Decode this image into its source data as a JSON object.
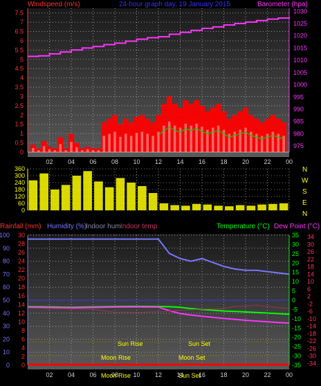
{
  "header": {
    "left_title": "Windspeed (m/s)",
    "center_title": "24-hour graph day, 19 January 2015",
    "right_title": "Barometer (hpa)"
  },
  "panel2": {
    "right_labels": [
      "N",
      "W",
      "S",
      "E",
      "N"
    ]
  },
  "panel3_header": {
    "rainfall": "Rainfall (mm)",
    "humidity": "Humidity (%)",
    "indoor_hum": "Indoor hum",
    "indoor_temp": "Indoor temp",
    "temperature": "Temperature (°C)",
    "dew_point": "Dew Point (°C)"
  },
  "astro": {
    "sun_rise": "Sun Rise",
    "sun_set": "Sun Set",
    "moon_rise": "Moon Rise",
    "moon_set": "Moon Set"
  },
  "colors": {
    "wind": "#ff0000",
    "gust_bg": "#ffffff",
    "wind_avg": "#00cc00",
    "barometer": "#ff33ff",
    "direction": "#ffff00",
    "humidity": "#7777ff",
    "temperature": "#00ff00",
    "dew_point": "#ff33ff",
    "indoor_temp": "#993355",
    "rain": "#ff0000",
    "axis_tick": "#ffff00",
    "title_center": "#3333ff"
  },
  "chart_data": [
    {
      "type": "bar",
      "title": "24-hour graph day, 19 January 2015",
      "xlabel": "",
      "ylabel": "Windspeed (m/s)",
      "y2label": "Barometer (hpa)",
      "x_ticks": [
        "02",
        "04",
        "06",
        "08",
        "10",
        "12",
        "14",
        "16",
        "18",
        "20",
        "22",
        "00"
      ],
      "y_ticks": [
        "0",
        "0.5",
        "1",
        "1.5",
        "2",
        "2.5",
        "3",
        "3.5",
        "4",
        "4.5",
        "5",
        "5.5",
        "6",
        "6.5",
        "7",
        "7.5"
      ],
      "y2_ticks": [
        "975",
        "980",
        "985",
        "990",
        "995",
        "1000",
        "1005",
        "1010",
        "1015",
        "1020",
        "1025",
        "1030"
      ],
      "ylim": [
        0,
        7.75
      ],
      "y2lim": [
        972.5,
        1031.2
      ],
      "grid": true,
      "series": [
        {
          "name": "Windspeed (m/s)",
          "x": [
            0.5,
            1,
            1.5,
            2,
            2.5,
            3,
            3.5,
            4,
            4.5,
            5,
            5.5,
            6,
            6.5,
            7,
            7.5,
            8,
            8.5,
            9,
            9.5,
            10,
            10.5,
            11,
            11.5,
            12,
            12.5,
            13,
            13.5,
            14,
            14.5,
            15,
            15.5,
            16,
            16.5,
            17,
            17.5,
            18,
            18.5,
            19,
            19.5,
            20,
            20.5,
            21,
            21.5,
            22,
            22.5,
            23,
            23.5
          ],
          "values": [
            0.4,
            0.2,
            0.6,
            0.3,
            0.2,
            0.8,
            0.2,
            1.0,
            0.5,
            0.2,
            0.3,
            0.2,
            0.2,
            1.6,
            1.8,
            2.0,
            1.5,
            1.8,
            1.6,
            1.9,
            2.0,
            1.8,
            1.6,
            2.0,
            2.6,
            3.0,
            2.6,
            2.4,
            2.8,
            2.6,
            2.8,
            2.5,
            2.2,
            2.4,
            2.6,
            2.2,
            1.8,
            2.0,
            2.2,
            2.4,
            2.0,
            1.8,
            1.6,
            1.8,
            2.0,
            1.8,
            1.6
          ]
        },
        {
          "name": "Barometer (hpa)",
          "x": [
            0,
            1,
            2,
            3,
            4,
            5,
            6,
            7,
            8,
            9,
            10,
            11,
            12,
            13,
            14,
            15,
            16,
            17,
            18,
            19,
            20,
            21,
            22,
            23,
            24
          ],
          "values": [
            1011.6,
            1011.8,
            1012.6,
            1013.4,
            1014.2,
            1015.0,
            1015.6,
            1016.4,
            1017.0,
            1017.8,
            1018.6,
            1019.2,
            1019.6,
            1020.6,
            1021.4,
            1022.2,
            1023.0,
            1023.6,
            1024.4,
            1025.0,
            1025.6,
            1026.2,
            1026.8,
            1027.2,
            1027.6
          ]
        }
      ]
    },
    {
      "type": "scatter",
      "title": "",
      "ylabel": "",
      "y_ticks": [
        "0",
        "30",
        "60",
        "90",
        "120",
        "150",
        "180",
        "210",
        "240",
        "270",
        "300",
        "330",
        "360"
      ],
      "ylim": [
        0,
        360
      ],
      "grid": true,
      "series": [
        {
          "name": "",
          "x": [
            0.5,
            1.5,
            2.5,
            3.5,
            4.5,
            5.5,
            6.5,
            7.5,
            8.5,
            9.5,
            10.5,
            11.5,
            12.5,
            13.5,
            14.5,
            15.5,
            16.5,
            17.5,
            18.5,
            19.5,
            20.5,
            21.5,
            22.5,
            23.5
          ],
          "values": [
            260,
            320,
            180,
            220,
            300,
            340,
            250,
            200,
            280,
            240,
            210,
            150,
            60,
            45,
            40,
            55,
            50,
            40,
            35,
            45,
            40,
            50,
            55,
            60
          ]
        }
      ]
    },
    {
      "type": "line",
      "title": "",
      "y_left_ticks": [
        "0",
        "10",
        "20",
        "30",
        "40",
        "50",
        "60",
        "70",
        "80",
        "90",
        "100"
      ],
      "y_left2_ticks": [
        "0",
        "2",
        "4",
        "6",
        "8",
        "10",
        "12",
        "14",
        "16",
        "18",
        "20",
        "22",
        "24",
        "26",
        "28",
        "30"
      ],
      "y_right_ticks": [
        "35",
        "30",
        "25",
        "20",
        "15",
        "10",
        "5",
        "0",
        "-5",
        "-10",
        "-15",
        "-20",
        "-25",
        "-30",
        "-35"
      ],
      "y_right2_ticks": [
        "34",
        "30",
        "26",
        "22",
        "18",
        "14",
        "10",
        "6",
        "2",
        "-2",
        "-6",
        "-10",
        "-14",
        "-18",
        "-22",
        "-26",
        "-30",
        "-34"
      ],
      "ylim": [
        0,
        100
      ],
      "y2lim": [
        -35,
        35
      ],
      "grid": true,
      "series": [
        {
          "name": "Humidity (%)",
          "x": [
            0,
            2,
            4,
            6,
            8,
            10,
            12,
            13,
            14,
            15,
            16,
            17,
            18,
            19,
            20,
            21,
            22,
            23,
            24
          ],
          "values": [
            97,
            97,
            97,
            97,
            97,
            97,
            97,
            86,
            82,
            80,
            82,
            79,
            76,
            74,
            73,
            73,
            72,
            71,
            70
          ]
        },
        {
          "name": "Temperature (°C)",
          "x": [
            0,
            2,
            4,
            6,
            8,
            10,
            12,
            13,
            14,
            15,
            16,
            17,
            18,
            19,
            20,
            21,
            22,
            23,
            24
          ],
          "values": [
            -3.5,
            -3.6,
            -3.8,
            -3.6,
            -3.4,
            -3.3,
            -3.4,
            -3.5,
            -3.8,
            -4.5,
            -5.0,
            -5.4,
            -5.8,
            -6.0,
            -6.3,
            -6.6,
            -6.9,
            -7.2,
            -7.6
          ]
        },
        {
          "name": "Dew Point (°C)",
          "x": [
            0,
            2,
            4,
            6,
            8,
            10,
            12,
            13,
            14,
            15,
            16,
            17,
            18,
            19,
            20,
            21,
            22,
            23,
            24
          ],
          "values": [
            -3.8,
            -3.9,
            -4.1,
            -3.9,
            -3.7,
            -3.6,
            -3.7,
            -5.6,
            -7.2,
            -8.0,
            -8.6,
            -9.2,
            -9.8,
            -10.3,
            -10.8,
            -11.2,
            -11.6,
            -12.0,
            -12.3
          ]
        },
        {
          "name": "Indoor temp",
          "x": [
            0,
            2,
            4,
            6,
            8,
            10,
            12,
            14,
            16,
            18,
            19,
            20,
            21,
            22,
            23,
            24
          ],
          "values": [
            -4.2,
            -4.4,
            -4.6,
            -5.0,
            -6.4,
            -6.6,
            -6.2,
            -5.4,
            -4.8,
            -4.6,
            -3.2,
            -3.2,
            -2.6,
            -3.4,
            -4.0,
            -4.4
          ]
        },
        {
          "name": "Rainfall (mm)",
          "x": [
            0,
            24
          ],
          "values": [
            0,
            0
          ]
        }
      ]
    }
  ]
}
